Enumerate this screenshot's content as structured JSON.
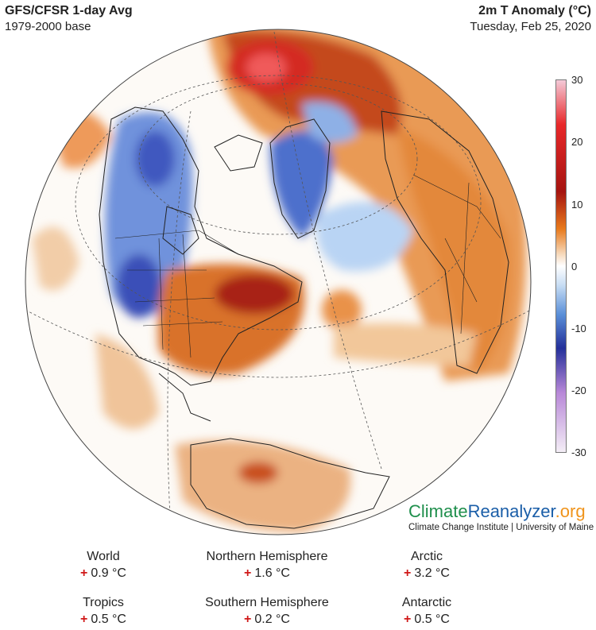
{
  "header": {
    "title": "GFS/CFSR 1-day Avg",
    "base": "1979-2000 base",
    "variable": "2m T Anomaly (°C)",
    "date": "Tuesday, Feb 25, 2020"
  },
  "colorbar": {
    "ticks": [
      "30",
      "20",
      "10",
      "0",
      "-10",
      "-20",
      "-30"
    ],
    "colors": [
      "#f2c9d8",
      "#e8282a",
      "#a01010",
      "#e87a1c",
      "#f7dcc0",
      "#ffffff",
      "#c9def4",
      "#5a8fd8",
      "#24309a",
      "#b888d8",
      "#f0e8f4"
    ]
  },
  "brand": {
    "part1": "Climate",
    "part2": "Reanalyzer",
    "part3": ".org",
    "subtitle": "Climate Change Institute | University of Maine"
  },
  "stats": [
    {
      "label": "World",
      "sign": "+",
      "value": "0.9 °C"
    },
    {
      "label": "Northern Hemisphere",
      "sign": "+",
      "value": "1.6 °C"
    },
    {
      "label": "Arctic",
      "sign": "+",
      "value": "3.2 °C"
    },
    {
      "label": "Tropics",
      "sign": "+",
      "value": "0.5 °C"
    },
    {
      "label": "Southern Hemisphere",
      "sign": "+",
      "value": "0.2 °C"
    },
    {
      "label": "Antarctic",
      "sign": "+",
      "value": "0.5 °C"
    }
  ]
}
